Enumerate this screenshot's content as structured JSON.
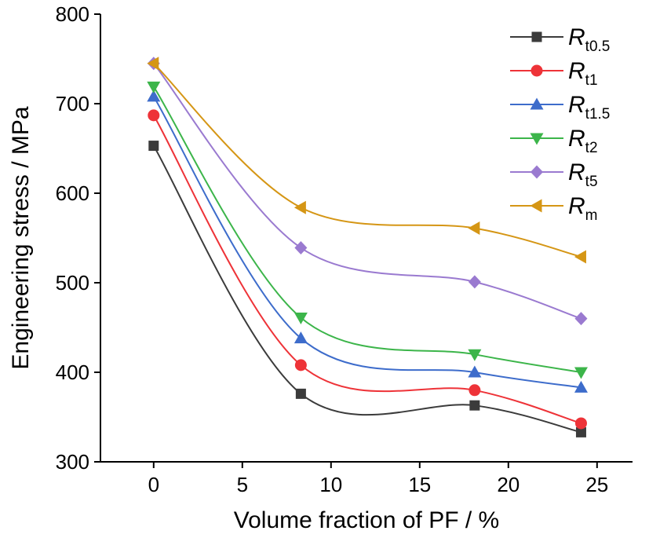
{
  "chart_data": {
    "type": "line",
    "xlabel": "Volume fraction of PF / %",
    "ylabel": "Engineering stress / MPa",
    "xlim": [
      -3,
      27
    ],
    "ylim": [
      300,
      800
    ],
    "xticks": [
      0,
      5,
      10,
      15,
      20,
      25
    ],
    "yticks": [
      300,
      400,
      500,
      600,
      700,
      800
    ],
    "x": [
      0,
      8.3,
      18.1,
      24.1
    ],
    "legend_position": "top-right",
    "grid": false,
    "series": [
      {
        "name": "Rt0.5",
        "label_main": "R",
        "label_sub": "t0.5",
        "color": "#3b3b3b",
        "marker": "square",
        "values": [
          653,
          376,
          363,
          333
        ]
      },
      {
        "name": "Rt1",
        "label_main": "R",
        "label_sub": "t1",
        "color": "#ee3338",
        "marker": "circle",
        "values": [
          687,
          408,
          380,
          343
        ]
      },
      {
        "name": "Rt1.5",
        "label_main": "R",
        "label_sub": "t1.5",
        "color": "#3d6ccb",
        "marker": "triangle-up",
        "values": [
          708,
          438,
          400,
          383
        ]
      },
      {
        "name": "Rt2",
        "label_main": "R",
        "label_sub": "t2",
        "color": "#3cb54a",
        "marker": "triangle-down",
        "values": [
          719,
          461,
          420,
          400
        ]
      },
      {
        "name": "Rt5",
        "label_main": "R",
        "label_sub": "t5",
        "color": "#9a7ad0",
        "marker": "diamond",
        "values": [
          745,
          539,
          501,
          460
        ]
      },
      {
        "name": "Rm",
        "label_main": "R",
        "label_sub": "m",
        "color": "#d59615",
        "marker": "triangle-left",
        "values": [
          745,
          584,
          561,
          529
        ]
      }
    ]
  }
}
